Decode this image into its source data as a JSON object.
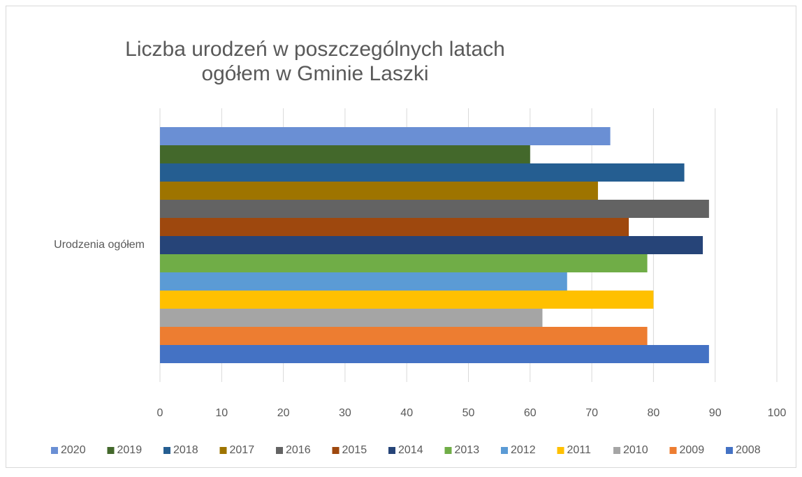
{
  "chart_data": {
    "type": "hbar",
    "title_lines": [
      "Liczba urodzeń w poszczególnych latach",
      "ogółem w Gminie Laszki"
    ],
    "categories": [
      "Urodzenia ogółem"
    ],
    "series": [
      {
        "name": "2020",
        "color": "#6a8fd4",
        "values": [
          73
        ]
      },
      {
        "name": "2019",
        "color": "#43682b",
        "values": [
          60
        ]
      },
      {
        "name": "2018",
        "color": "#255e91",
        "values": [
          85
        ]
      },
      {
        "name": "2017",
        "color": "#9e7400",
        "values": [
          71
        ]
      },
      {
        "name": "2016",
        "color": "#636363",
        "values": [
          89
        ]
      },
      {
        "name": "2015",
        "color": "#9e480e",
        "values": [
          76
        ]
      },
      {
        "name": "2014",
        "color": "#264478",
        "values": [
          88
        ]
      },
      {
        "name": "2013",
        "color": "#70ad47",
        "values": [
          79
        ]
      },
      {
        "name": "2012",
        "color": "#5b9bd5",
        "values": [
          66
        ]
      },
      {
        "name": "2011",
        "color": "#ffc000",
        "values": [
          80
        ]
      },
      {
        "name": "2010",
        "color": "#a5a5a5",
        "values": [
          62
        ]
      },
      {
        "name": "2009",
        "color": "#ed7d31",
        "values": [
          79
        ]
      },
      {
        "name": "2008",
        "color": "#4472c4",
        "values": [
          89
        ]
      }
    ],
    "xlim": [
      0,
      100
    ],
    "xticks": [
      0,
      10,
      20,
      30,
      40,
      50,
      60,
      70,
      80,
      90,
      100
    ],
    "grid": true,
    "legend": "bottom"
  }
}
